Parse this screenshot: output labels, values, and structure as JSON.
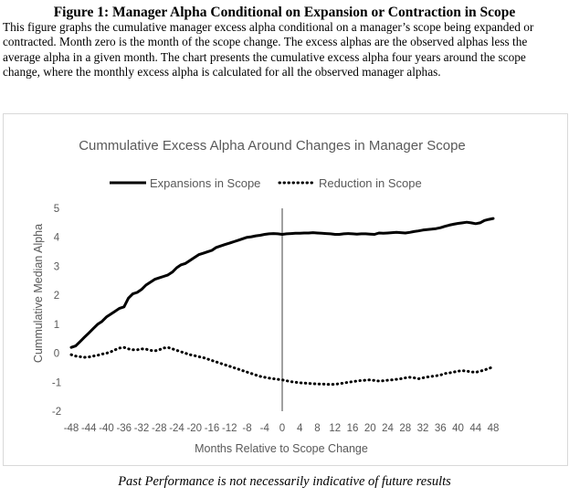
{
  "figure_title": "Figure 1: Manager Alpha Conditional on Expansion or Contraction in Scope",
  "caption": "This figure graphs the cumulative manager excess alpha conditional on a manager’s scope being expanded or contracted. Month zero is the month of the scope change. The excess alphas are the observed alphas less the average alpha in a given month. The chart presents the cumulative excess alpha four years around the scope change, where the monthly excess alpha is calculated for all the observed manager alphas.",
  "footer": "Past Performance is not necessarily indicative of future results",
  "chart_data": {
    "type": "line",
    "title": "Cummulative Excess Alpha Around Changes in Manager Scope",
    "xlabel": "Months Relative to Scope Change",
    "ylabel": "Cummulative Median Alpha",
    "xlim": [
      -48,
      48
    ],
    "ylim": [
      -2,
      5
    ],
    "xticks": [
      -48,
      -44,
      -40,
      -36,
      -32,
      -28,
      -24,
      -20,
      -16,
      -12,
      -8,
      -4,
      0,
      4,
      8,
      12,
      16,
      20,
      24,
      28,
      32,
      36,
      40,
      44,
      48
    ],
    "yticks": [
      -2,
      -1,
      0,
      1,
      2,
      3,
      4,
      5
    ],
    "grid": false,
    "legend_position": "top",
    "vline_x": 0,
    "x": [
      -48,
      -47,
      -46,
      -45,
      -44,
      -43,
      -42,
      -41,
      -40,
      -39,
      -38,
      -37,
      -36,
      -35,
      -34,
      -33,
      -32,
      -31,
      -30,
      -29,
      -28,
      -27,
      -26,
      -25,
      -24,
      -23,
      -22,
      -21,
      -20,
      -19,
      -18,
      -17,
      -16,
      -15,
      -14,
      -13,
      -12,
      -11,
      -10,
      -9,
      -8,
      -7,
      -6,
      -5,
      -4,
      -3,
      -2,
      -1,
      0,
      1,
      2,
      3,
      4,
      5,
      6,
      7,
      8,
      9,
      10,
      11,
      12,
      13,
      14,
      15,
      16,
      17,
      18,
      19,
      20,
      21,
      22,
      23,
      24,
      25,
      26,
      27,
      28,
      29,
      30,
      31,
      32,
      33,
      34,
      35,
      36,
      37,
      38,
      39,
      40,
      41,
      42,
      43,
      44,
      45,
      46,
      47,
      48
    ],
    "series": [
      {
        "name": "Expansions in Scope",
        "style": "solid",
        "color": "#000000",
        "values": [
          0.2,
          0.25,
          0.4,
          0.55,
          0.7,
          0.85,
          1.0,
          1.1,
          1.25,
          1.35,
          1.45,
          1.55,
          1.6,
          1.9,
          2.05,
          2.1,
          2.2,
          2.35,
          2.45,
          2.55,
          2.6,
          2.65,
          2.7,
          2.8,
          2.95,
          3.05,
          3.1,
          3.2,
          3.3,
          3.4,
          3.45,
          3.5,
          3.55,
          3.65,
          3.7,
          3.75,
          3.8,
          3.85,
          3.9,
          3.95,
          4.0,
          4.02,
          4.05,
          4.07,
          4.1,
          4.12,
          4.13,
          4.12,
          4.1,
          4.12,
          4.13,
          4.14,
          4.14,
          4.15,
          4.15,
          4.16,
          4.15,
          4.14,
          4.13,
          4.12,
          4.1,
          4.1,
          4.12,
          4.13,
          4.12,
          4.11,
          4.12,
          4.12,
          4.11,
          4.1,
          4.15,
          4.14,
          4.15,
          4.16,
          4.17,
          4.16,
          4.15,
          4.17,
          4.2,
          4.22,
          4.25,
          4.27,
          4.28,
          4.3,
          4.33,
          4.38,
          4.42,
          4.45,
          4.48,
          4.5,
          4.52,
          4.5,
          4.47,
          4.5,
          4.58,
          4.62,
          4.65
        ]
      },
      {
        "name": "Reduction in Scope",
        "style": "dotted",
        "color": "#000000",
        "values": [
          -0.05,
          -0.1,
          -0.12,
          -0.14,
          -0.13,
          -0.1,
          -0.07,
          -0.03,
          0.0,
          0.05,
          0.12,
          0.18,
          0.2,
          0.15,
          0.12,
          0.12,
          0.15,
          0.14,
          0.1,
          0.08,
          0.12,
          0.18,
          0.2,
          0.15,
          0.1,
          0.05,
          0.0,
          -0.05,
          -0.08,
          -0.12,
          -0.15,
          -0.2,
          -0.25,
          -0.3,
          -0.35,
          -0.4,
          -0.45,
          -0.5,
          -0.55,
          -0.6,
          -0.65,
          -0.7,
          -0.75,
          -0.8,
          -0.83,
          -0.86,
          -0.88,
          -0.9,
          -0.92,
          -0.95,
          -0.98,
          -1.0,
          -1.02,
          -1.03,
          -1.04,
          -1.05,
          -1.06,
          -1.06,
          -1.07,
          -1.08,
          -1.07,
          -1.05,
          -1.03,
          -1.0,
          -0.98,
          -0.96,
          -0.94,
          -0.93,
          -0.92,
          -0.94,
          -0.96,
          -0.95,
          -0.93,
          -0.92,
          -0.9,
          -0.88,
          -0.85,
          -0.83,
          -0.85,
          -0.88,
          -0.85,
          -0.82,
          -0.8,
          -0.78,
          -0.75,
          -0.7,
          -0.68,
          -0.65,
          -0.62,
          -0.6,
          -0.62,
          -0.64,
          -0.66,
          -0.62,
          -0.58,
          -0.52,
          -0.48
        ]
      }
    ]
  }
}
